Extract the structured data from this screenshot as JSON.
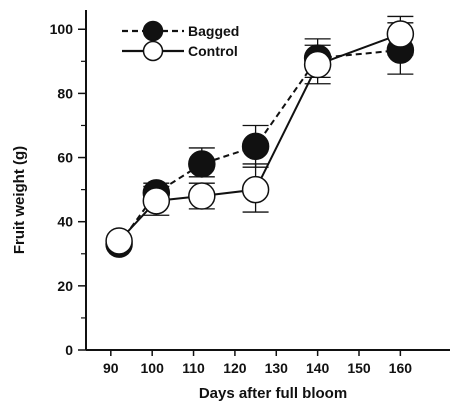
{
  "chart_data": {
    "type": "line",
    "title": "",
    "xlabel": "Days after full bloom",
    "ylabel": "Fruit weight (g)",
    "xlim": [
      84,
      172
    ],
    "ylim": [
      0,
      106
    ],
    "x_ticks": [
      90,
      100,
      110,
      120,
      130,
      140,
      150,
      160
    ],
    "y_ticks": [
      0,
      20,
      40,
      60,
      80,
      100
    ],
    "y_minor_ticks": [
      10,
      30,
      50,
      70,
      90
    ],
    "grid": false,
    "legend_position": "top-left",
    "series": [
      {
        "name": "Bagged",
        "marker": "filled-circle",
        "line_style": "dashed",
        "color": "#111111",
        "points": [
          {
            "x": 92,
            "y": 33,
            "err_low": 33,
            "err_high": 33
          },
          {
            "x": 101,
            "y": 49,
            "err_low": 46,
            "err_high": 52
          },
          {
            "x": 112,
            "y": 58,
            "err_low": 54,
            "err_high": 63
          },
          {
            "x": 125,
            "y": 63.5,
            "err_low": 57,
            "err_high": 70
          },
          {
            "x": 140,
            "y": 91,
            "err_low": 85,
            "err_high": 97
          },
          {
            "x": 160,
            "y": 93.5,
            "err_low": 86,
            "err_high": 102
          }
        ]
      },
      {
        "name": "Control",
        "marker": "open-circle",
        "line_style": "solid",
        "color": "#111111",
        "points": [
          {
            "x": 92,
            "y": 34,
            "err_low": 34,
            "err_high": 34
          },
          {
            "x": 101,
            "y": 46.5,
            "err_low": 42,
            "err_high": 51
          },
          {
            "x": 112,
            "y": 48,
            "err_low": 44,
            "err_high": 52
          },
          {
            "x": 125,
            "y": 50,
            "err_low": 43,
            "err_high": 58
          },
          {
            "x": 140,
            "y": 89,
            "err_low": 83,
            "err_high": 95
          },
          {
            "x": 160,
            "y": 98.5,
            "err_low": 92,
            "err_high": 104
          }
        ]
      }
    ]
  }
}
